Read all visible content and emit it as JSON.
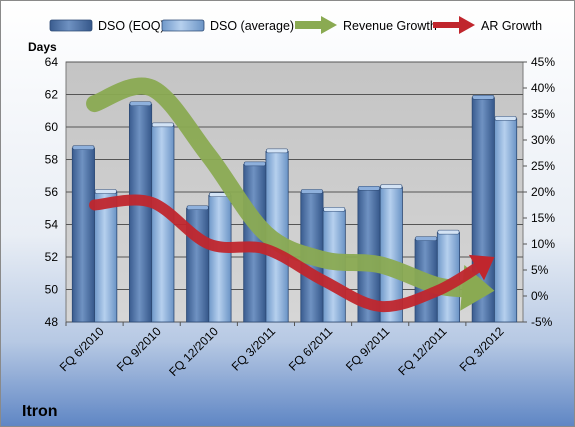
{
  "chart_data": {
    "type": "bar",
    "title": "Itron",
    "ylabel": "Days",
    "categories": [
      "FQ 6/2010",
      "FQ 9/2010",
      "FQ 12/2010",
      "FQ 3/2011",
      "FQ 6/2011",
      "FQ 9/2011",
      "FQ 12/2011",
      "FQ 3/2012"
    ],
    "ylim": [
      48,
      64
    ],
    "y_ticks": [
      "48",
      "50",
      "52",
      "54",
      "56",
      "58",
      "60",
      "62",
      "64"
    ],
    "y2lim": [
      -5,
      45
    ],
    "y2_ticks": [
      "-5%",
      "0%",
      "5%",
      "10%",
      "15%",
      "20%",
      "25%",
      "30%",
      "35%",
      "40%",
      "45%"
    ],
    "grid": true,
    "legend_position": "top",
    "series": [
      {
        "name": "DSO (EOQ)",
        "type": "bar",
        "axis": "left",
        "color": "#4a6fa5",
        "values": [
          58.7,
          61.4,
          55.0,
          57.7,
          56.0,
          56.2,
          53.1,
          61.8
        ]
      },
      {
        "name": "DSO (average)",
        "type": "bar",
        "axis": "left",
        "color": "#8fb4de",
        "values": [
          56.0,
          60.1,
          55.8,
          58.5,
          54.9,
          56.3,
          53.5,
          60.5
        ]
      },
      {
        "name": "Revenue Growth",
        "type": "line",
        "axis": "right",
        "color": "#8aaa52",
        "values": [
          37,
          40,
          27,
          12,
          7,
          6,
          2,
          1
        ]
      },
      {
        "name": "AR Growth",
        "type": "line",
        "axis": "right",
        "color": "#c0262d",
        "values": [
          17.5,
          18,
          10,
          9,
          3,
          -2,
          1,
          7.5
        ]
      }
    ]
  }
}
